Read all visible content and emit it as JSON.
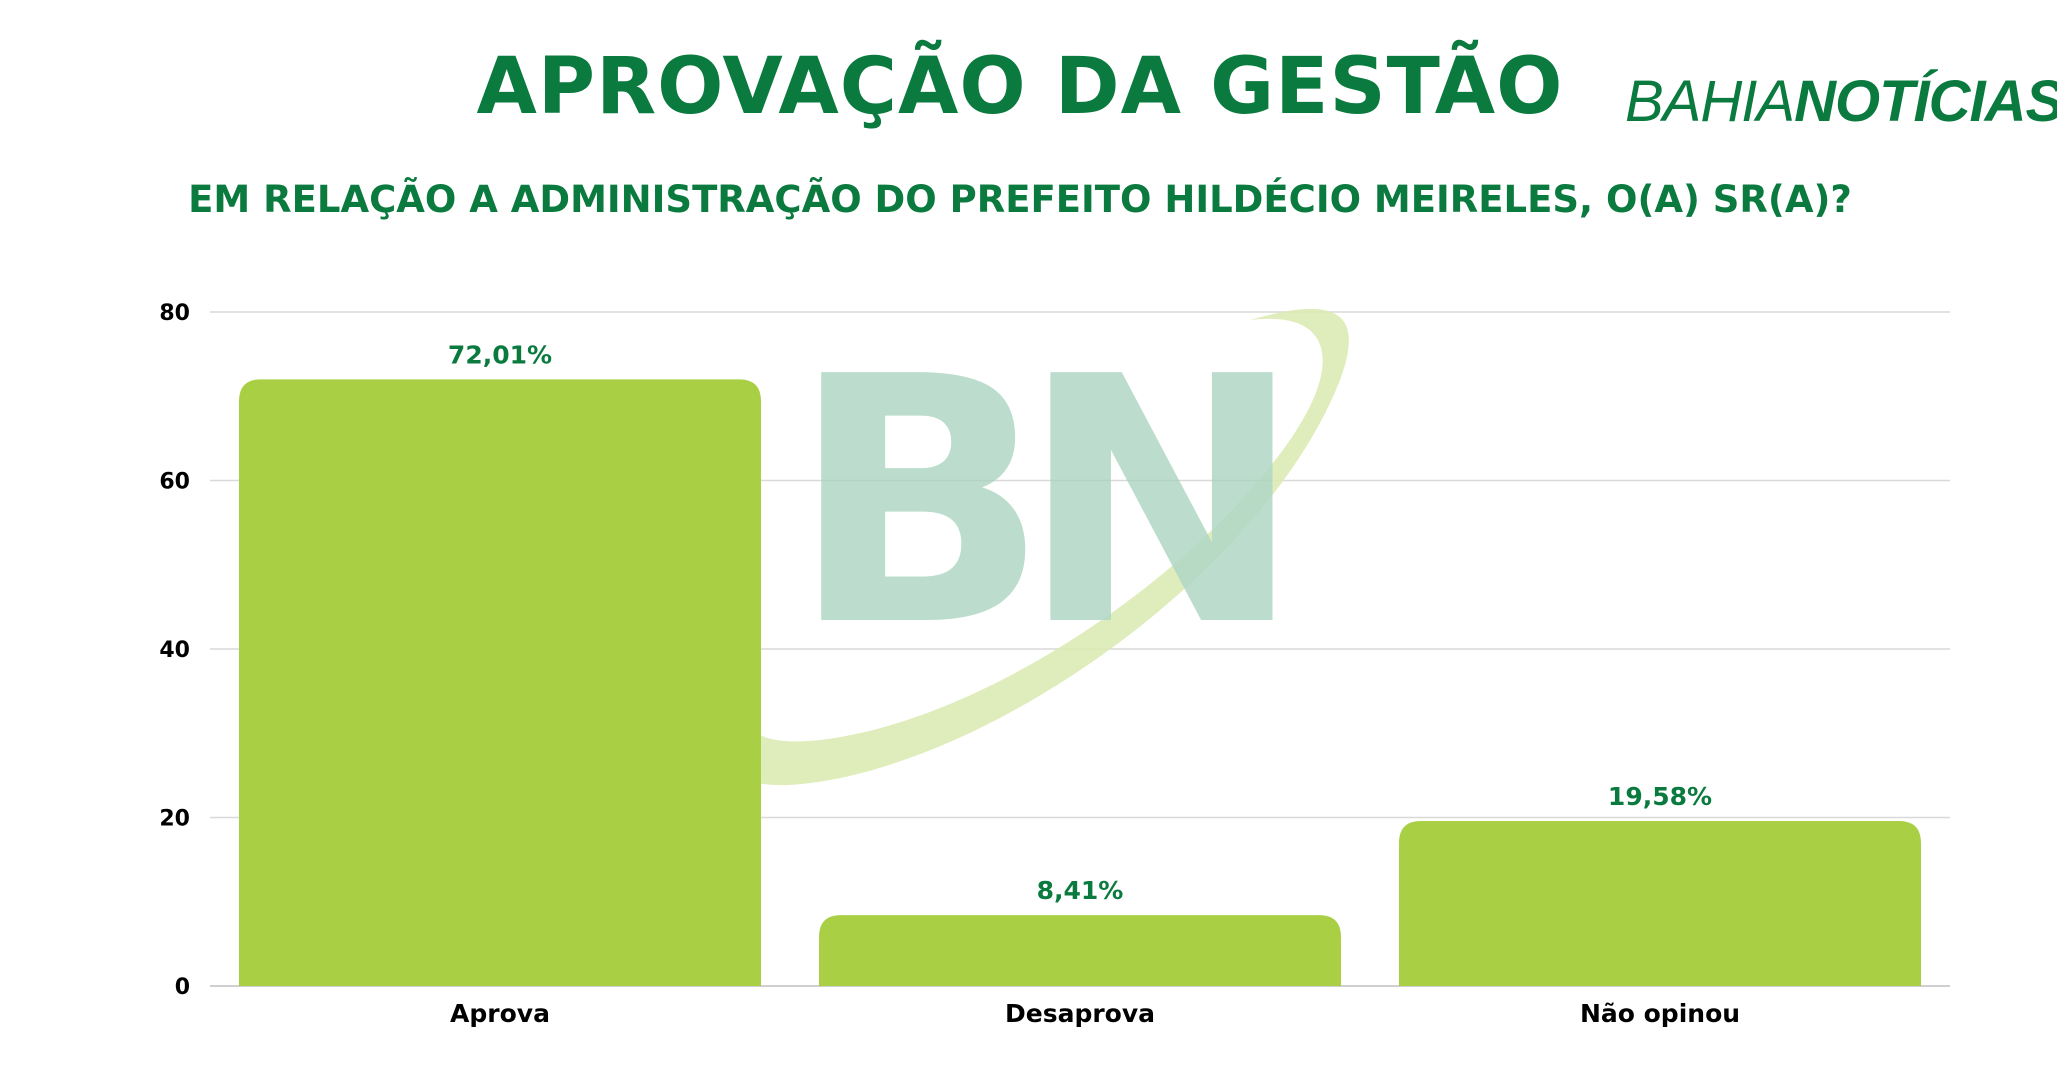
{
  "header": {
    "title": "APROVAÇÃO DA GESTÃO",
    "brand_part1": "BAHIA",
    "brand_part2": "NOTÍCIAS",
    "subtitle": "EM RELAÇÃO A ADMINISTRAÇÃO DO PREFEITO HILDÉCIO MEIRELES, O(A) SR(A)?"
  },
  "watermark": {
    "text": "BN"
  },
  "colors": {
    "title": "#0a7a3f",
    "bar": "#a9d045",
    "data_label": "#0a7a3f",
    "grid": "#d9d9d9",
    "watermark_letters": "#a8d3bf",
    "watermark_swoosh": "#dcebb4"
  },
  "chart_data": {
    "type": "bar",
    "title": "APROVAÇÃO DA GESTÃO",
    "subtitle": "EM RELAÇÃO A ADMINISTRAÇÃO DO PREFEITO HILDÉCIO MEIRELES, O(A) SR(A)?",
    "categories": [
      "Aprova",
      "Desaprova",
      "Não opinou"
    ],
    "values": [
      72.01,
      8.41,
      19.58
    ],
    "data_labels": [
      "72,01%",
      "8,41%",
      "19,58%"
    ],
    "ylim": [
      0,
      80
    ],
    "yticks": [
      0,
      20,
      40,
      60,
      80
    ],
    "xlabel": "",
    "ylabel": "",
    "grid": true,
    "legend": "none"
  }
}
